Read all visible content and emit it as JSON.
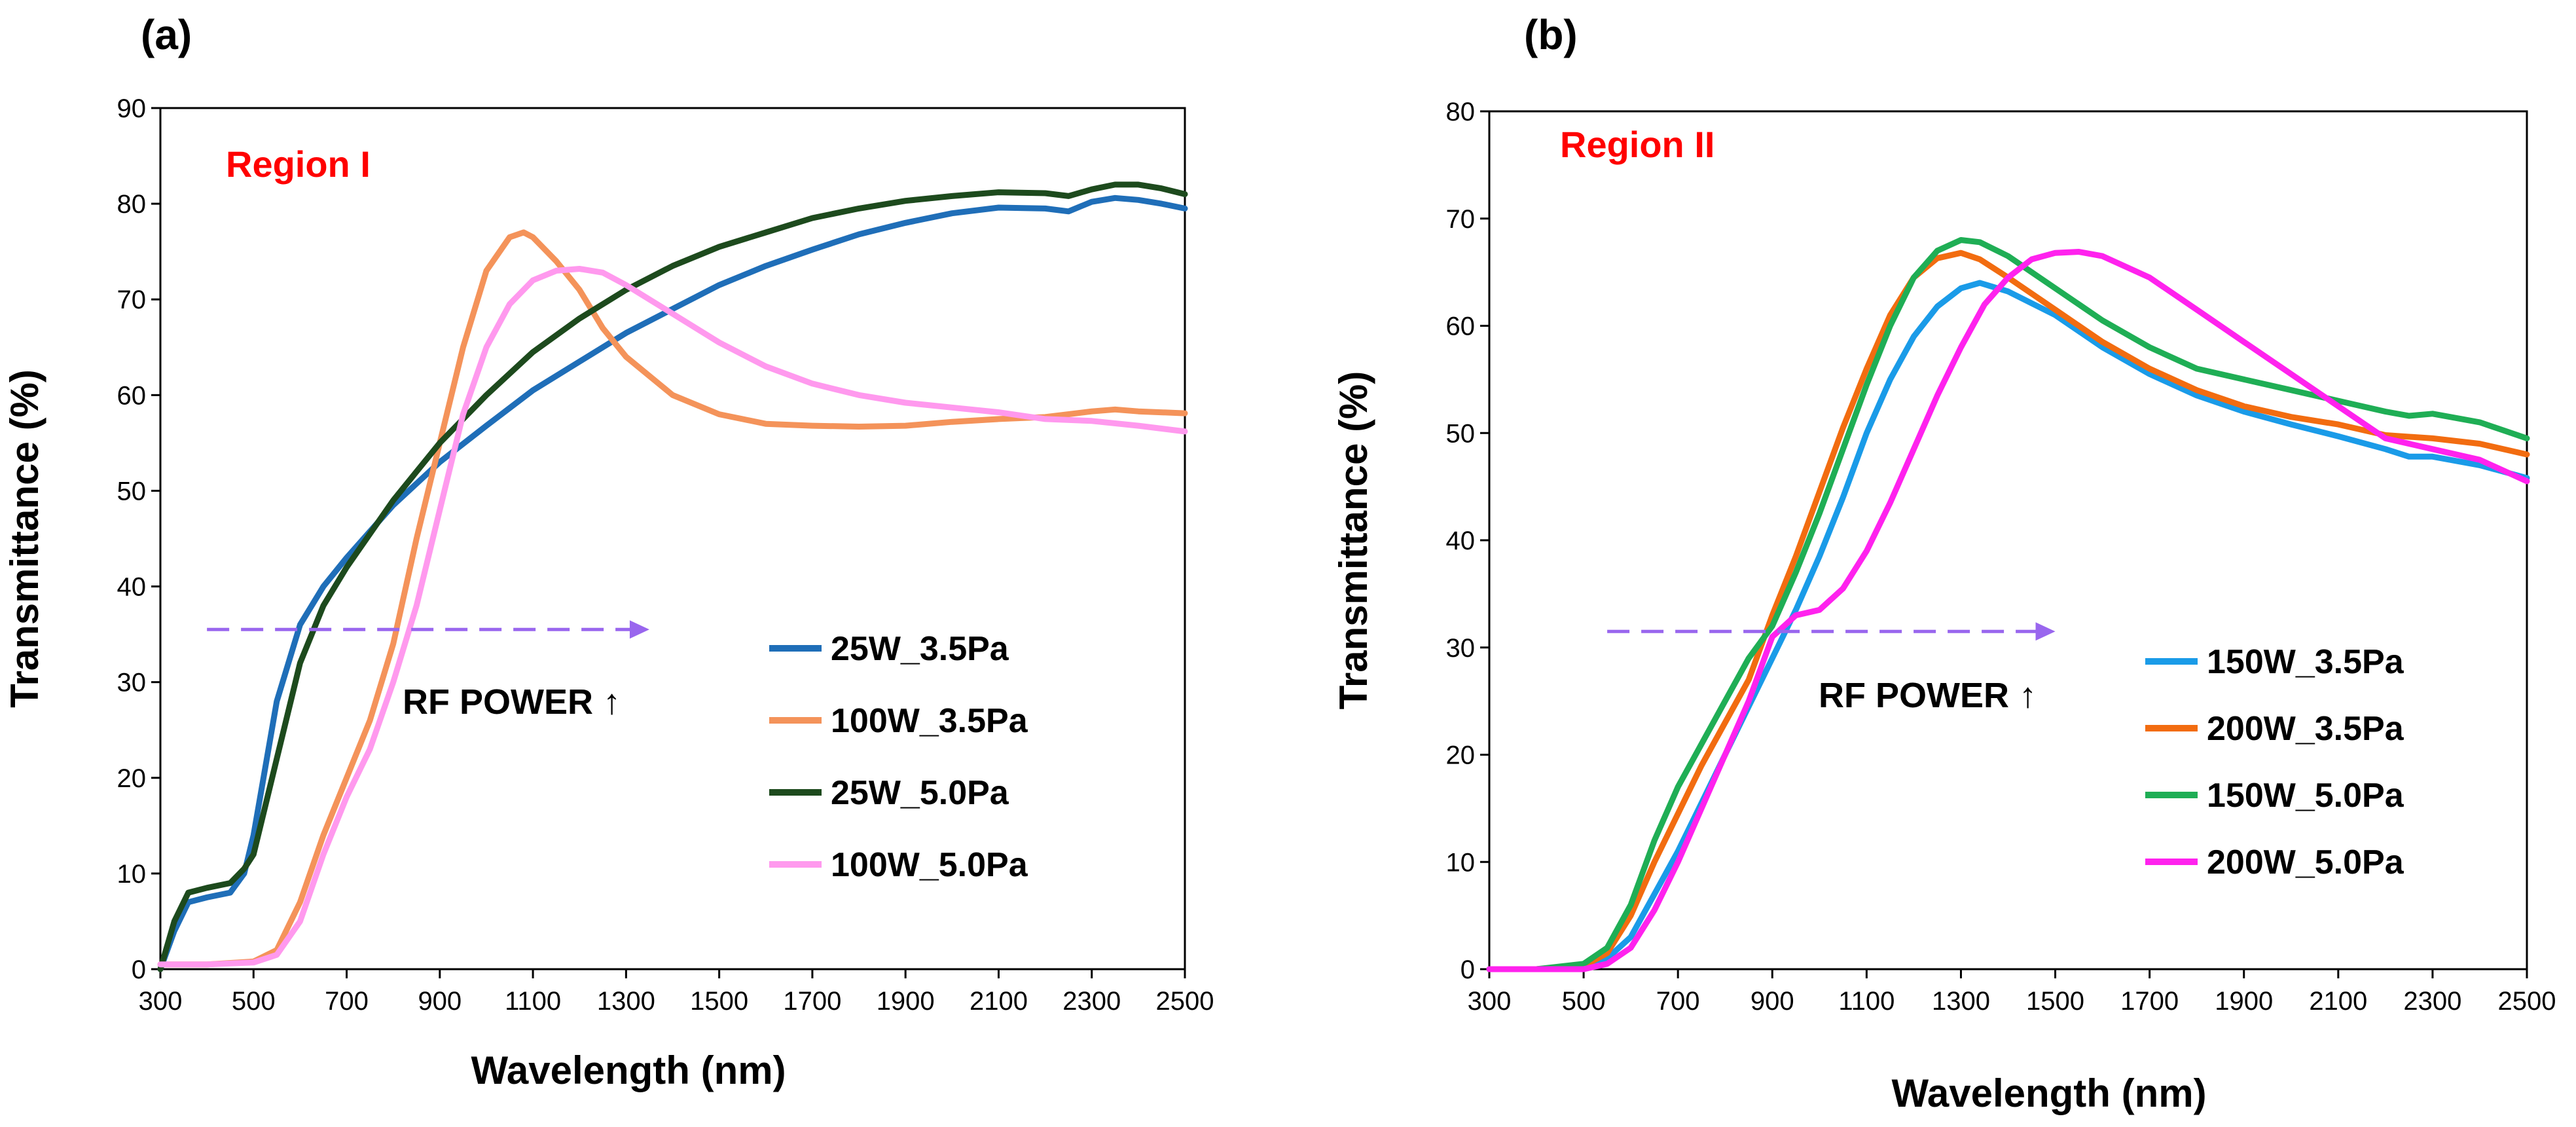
{
  "chart_data": [
    {
      "type": "line",
      "panel_label": "(a)",
      "region_label": "Region I",
      "annotation": "RF POWER ↑",
      "xlabel": "Wavelength (nm)",
      "ylabel": "Transmittance (%)",
      "xlim": [
        300,
        2500
      ],
      "ylim": [
        0,
        90
      ],
      "xticks": [
        300,
        500,
        700,
        900,
        1100,
        1300,
        1500,
        1700,
        1900,
        2100,
        2300,
        2500
      ],
      "yticks": [
        0,
        10,
        20,
        30,
        40,
        50,
        60,
        70,
        80,
        90
      ],
      "arrow": {
        "x_start": 400,
        "x_end": 1350,
        "y": 35.5,
        "color": "#9966ee"
      },
      "series": [
        {
          "name": "25W_3.5Pa",
          "color": "#1f6eb8",
          "x": [
            300,
            330,
            360,
            400,
            450,
            480,
            500,
            550,
            600,
            650,
            700,
            800,
            900,
            1000,
            1100,
            1200,
            1300,
            1400,
            1500,
            1600,
            1700,
            1800,
            1900,
            2000,
            2100,
            2200,
            2250,
            2300,
            2350,
            2400,
            2450,
            2500
          ],
          "values": [
            0,
            4,
            7,
            7.5,
            8,
            10,
            14,
            28,
            36,
            40,
            43,
            48.5,
            53,
            56.8,
            60.5,
            63.5,
            66.5,
            69,
            71.5,
            73.5,
            75.2,
            76.8,
            78,
            79,
            79.6,
            79.5,
            79.2,
            80.2,
            80.6,
            80.4,
            80,
            79.5
          ]
        },
        {
          "name": "100W_3.5Pa",
          "color": "#f4935a",
          "x": [
            300,
            400,
            500,
            550,
            600,
            650,
            700,
            750,
            800,
            850,
            900,
            950,
            1000,
            1050,
            1080,
            1100,
            1150,
            1200,
            1250,
            1300,
            1400,
            1500,
            1600,
            1700,
            1800,
            1900,
            2000,
            2100,
            2200,
            2300,
            2350,
            2400,
            2500
          ],
          "values": [
            0.5,
            0.5,
            0.8,
            2,
            7,
            14,
            20,
            26,
            34,
            45,
            55,
            65,
            73,
            76.5,
            77,
            76.5,
            74,
            71,
            67,
            64,
            60,
            58,
            57,
            56.8,
            56.7,
            56.8,
            57.2,
            57.5,
            57.7,
            58.3,
            58.5,
            58.3,
            58.1
          ]
        },
        {
          "name": "25W_5.0Pa",
          "color": "#1d4a1d",
          "x": [
            300,
            330,
            360,
            400,
            450,
            480,
            500,
            550,
            600,
            650,
            700,
            800,
            900,
            1000,
            1100,
            1200,
            1300,
            1400,
            1500,
            1600,
            1700,
            1800,
            1900,
            2000,
            2100,
            2200,
            2250,
            2300,
            2350,
            2400,
            2450,
            2500
          ],
          "values": [
            0,
            5,
            8,
            8.5,
            9,
            10.5,
            12,
            22,
            32,
            38,
            42,
            49,
            55,
            60,
            64.5,
            68,
            71,
            73.5,
            75.5,
            77,
            78.5,
            79.5,
            80.3,
            80.8,
            81.2,
            81.1,
            80.8,
            81.5,
            82,
            82,
            81.6,
            81
          ]
        },
        {
          "name": "100W_5.0Pa",
          "color": "#ff99ee",
          "x": [
            300,
            400,
            500,
            550,
            600,
            650,
            700,
            750,
            800,
            850,
            900,
            950,
            1000,
            1050,
            1100,
            1150,
            1200,
            1250,
            1300,
            1400,
            1500,
            1600,
            1700,
            1800,
            1900,
            2000,
            2100,
            2200,
            2300,
            2400,
            2500
          ],
          "values": [
            0.5,
            0.5,
            0.7,
            1.5,
            5,
            12,
            18,
            23,
            30,
            38,
            48,
            58,
            65,
            69.5,
            72,
            73,
            73.2,
            72.8,
            71.5,
            68.5,
            65.5,
            63,
            61.2,
            60,
            59.2,
            58.7,
            58.2,
            57.5,
            57.3,
            56.8,
            56.2
          ]
        }
      ],
      "legend": [
        "25W_3.5Pa",
        "100W_3.5Pa",
        "25W_5.0Pa",
        "100W_5.0Pa"
      ]
    },
    {
      "type": "line",
      "panel_label": "(b)",
      "region_label": "Region II",
      "annotation": "RF POWER ↑",
      "xlabel": "Wavelength (nm)",
      "ylabel": "Transmittance (%)",
      "xlim": [
        300,
        2500
      ],
      "ylim": [
        0,
        80
      ],
      "xticks": [
        300,
        500,
        700,
        900,
        1100,
        1300,
        1500,
        1700,
        1900,
        2100,
        2300,
        2500
      ],
      "yticks": [
        0,
        10,
        20,
        30,
        40,
        50,
        60,
        70,
        80
      ],
      "arrow": {
        "x_start": 550,
        "x_end": 1500,
        "y": 31.5,
        "color": "#9966ee"
      },
      "series": [
        {
          "name": "150W_3.5Pa",
          "color": "#1a9be8",
          "x": [
            300,
            400,
            500,
            550,
            600,
            650,
            700,
            750,
            800,
            850,
            900,
            950,
            1000,
            1050,
            1100,
            1150,
            1200,
            1250,
            1300,
            1340,
            1400,
            1500,
            1600,
            1700,
            1800,
            1900,
            2000,
            2100,
            2200,
            2250,
            2300,
            2400,
            2500
          ],
          "values": [
            0,
            0,
            0.2,
            1,
            3,
            7,
            11,
            15.5,
            20,
            24.5,
            29,
            33.5,
            38.5,
            44,
            50,
            55,
            59,
            61.8,
            63.5,
            64,
            63.2,
            61,
            58,
            55.5,
            53.5,
            52,
            50.8,
            49.7,
            48.5,
            47.8,
            47.8,
            47,
            45.8
          ]
        },
        {
          "name": "200W_3.5Pa",
          "color": "#f26c10",
          "x": [
            300,
            400,
            500,
            550,
            600,
            650,
            700,
            750,
            800,
            850,
            900,
            950,
            1000,
            1050,
            1100,
            1150,
            1200,
            1250,
            1300,
            1340,
            1400,
            1500,
            1600,
            1700,
            1800,
            1900,
            2000,
            2100,
            2200,
            2300,
            2400,
            2500
          ],
          "values": [
            0,
            0,
            0.3,
            1.5,
            5,
            10,
            14.5,
            19,
            23,
            27,
            33,
            38.5,
            44.5,
            50.5,
            56,
            61,
            64.5,
            66.3,
            66.8,
            66.2,
            64.5,
            61.5,
            58.5,
            56,
            54,
            52.5,
            51.5,
            50.8,
            49.8,
            49.5,
            49,
            48
          ]
        },
        {
          "name": "150W_5.0Pa",
          "color": "#1fae55",
          "x": [
            300,
            400,
            500,
            550,
            600,
            650,
            700,
            750,
            800,
            850,
            900,
            950,
            1000,
            1050,
            1100,
            1150,
            1200,
            1250,
            1300,
            1340,
            1400,
            1500,
            1600,
            1700,
            1800,
            1900,
            2000,
            2100,
            2200,
            2250,
            2300,
            2400,
            2500
          ],
          "values": [
            0,
            0,
            0.5,
            2,
            6,
            12,
            17,
            21,
            25,
            29,
            32,
            37,
            42.5,
            48.5,
            54.5,
            60,
            64.5,
            67,
            68,
            67.8,
            66.5,
            63.5,
            60.5,
            58,
            56,
            55,
            54,
            53,
            52,
            51.6,
            51.8,
            51,
            49.5
          ]
        },
        {
          "name": "200W_5.0Pa",
          "color": "#ff22ee",
          "x": [
            300,
            400,
            500,
            550,
            600,
            650,
            700,
            750,
            800,
            850,
            900,
            950,
            1000,
            1050,
            1100,
            1150,
            1200,
            1250,
            1300,
            1350,
            1400,
            1450,
            1500,
            1550,
            1600,
            1700,
            1800,
            1900,
            2000,
            2100,
            2200,
            2300,
            2400,
            2500
          ],
          "values": [
            0,
            0,
            0,
            0.5,
            2,
            5.5,
            10,
            15,
            20,
            25,
            31,
            33,
            33.5,
            35.5,
            39,
            43.5,
            48.5,
            53.5,
            58,
            62,
            64.5,
            66.2,
            66.8,
            66.9,
            66.5,
            64.5,
            61.5,
            58.5,
            55.5,
            52.5,
            49.5,
            48.5,
            47.5,
            45.5
          ]
        }
      ],
      "legend": [
        "150W_3.5Pa",
        "200W_3.5Pa",
        "150W_5.0Pa",
        "200W_5.0Pa"
      ]
    }
  ]
}
